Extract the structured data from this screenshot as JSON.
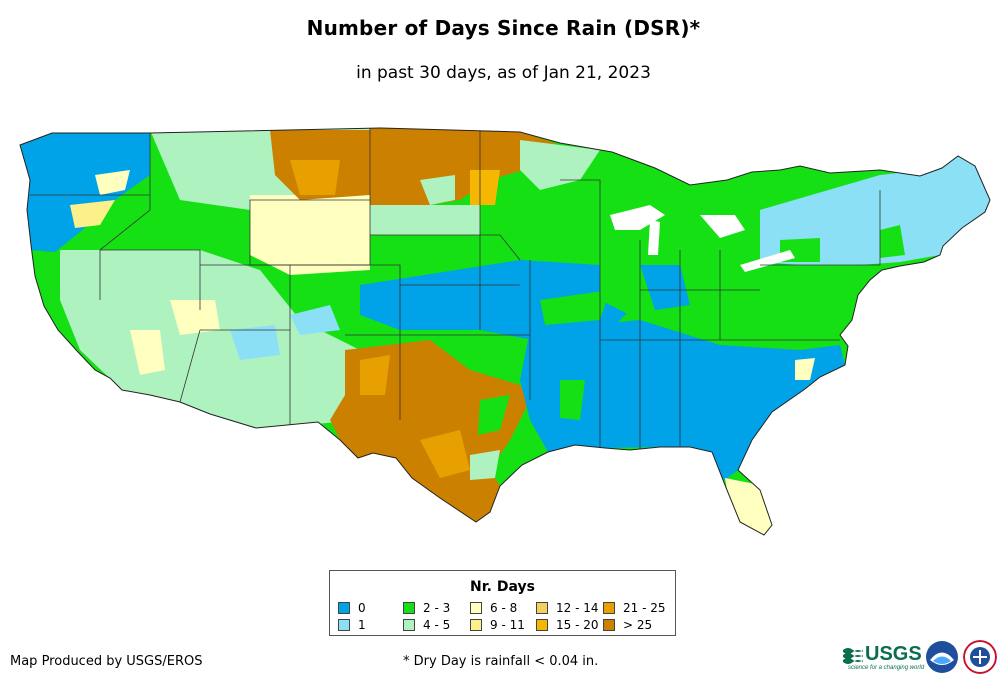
{
  "title": "Number of Days Since Rain (DSR)*",
  "subtitle": "in past 30 days, as of Jan 21, 2023",
  "legend": {
    "title": "Nr. Days",
    "items": [
      {
        "label": "0",
        "color": "#00a2e8"
      },
      {
        "label": "1",
        "color": "#8be0f5"
      },
      {
        "label": "2 - 3",
        "color": "#14e014"
      },
      {
        "label": "4 - 5",
        "color": "#aef2c0"
      },
      {
        "label": "6 - 8",
        "color": "#ffffc0"
      },
      {
        "label": "9 - 11",
        "color": "#fbf08a"
      },
      {
        "label": "12 - 14",
        "color": "#f5d060"
      },
      {
        "label": "15 - 20",
        "color": "#f5b700"
      },
      {
        "label": "21 - 25",
        "color": "#e8a000"
      },
      {
        "label": "> 25",
        "color": "#cc8000"
      }
    ]
  },
  "credit": "Map Produced by USGS/EROS",
  "footnote": "* Dry Day is rainfall < 0.04 in.",
  "logos": {
    "usgs": "USGS",
    "usgs_tagline": "science for a changing world",
    "noaa": "NOAA",
    "nws": "National Weather Service"
  },
  "icons": [
    "usgs-logo",
    "noaa-logo",
    "nws-logo"
  ]
}
